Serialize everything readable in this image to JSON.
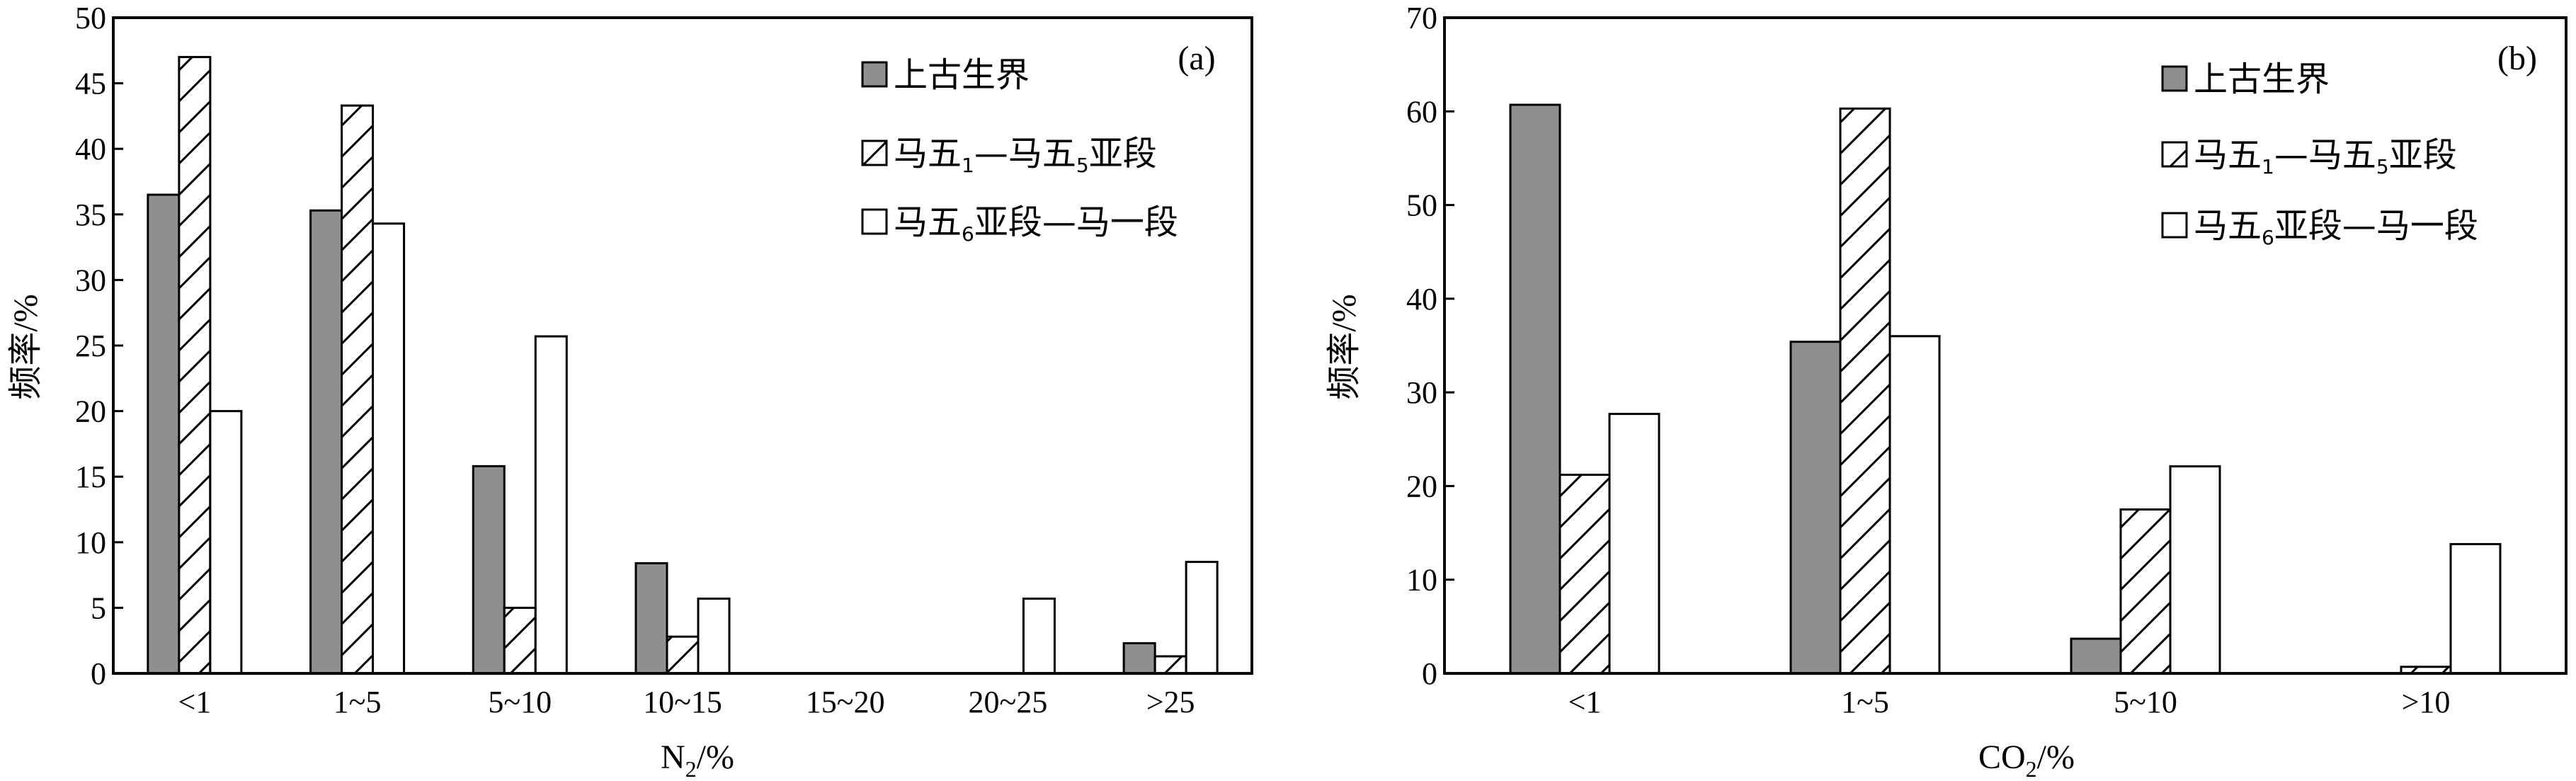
{
  "chart_data": [
    {
      "type": "bar",
      "panel_label": "(a)",
      "xlabel_main": "N",
      "xlabel_sub": "2",
      "xlabel_rest": "/%",
      "ylabel": "频率/%",
      "ylim": [
        0,
        50
      ],
      "yticks": [
        0,
        5,
        10,
        15,
        20,
        25,
        30,
        35,
        40,
        45,
        50
      ],
      "categories": [
        "<1",
        "1~5",
        "5~10",
        "10~15",
        "15~20",
        "20~25",
        ">25"
      ],
      "legend_position": "top-right",
      "series": [
        {
          "name": "上古生界",
          "legend": {
            "pre": "上古生界",
            "sub": "",
            "post": ""
          },
          "fill": "gray",
          "values": [
            36.5,
            35.3,
            15.8,
            8.4,
            0,
            0,
            2.3
          ]
        },
        {
          "name": "马五1—马五5亚段",
          "legend": {
            "pre": "马五",
            "sub": "1",
            "post": "—马五",
            "sub2": "5",
            "post2": "亚段"
          },
          "fill": "hatch",
          "values": [
            47.0,
            43.3,
            5.0,
            2.8,
            0,
            0,
            1.3
          ]
        },
        {
          "name": "马五6亚段—马一段",
          "legend": {
            "pre": "马五",
            "sub": "6",
            "post": "亚段—马一段"
          },
          "fill": "white",
          "values": [
            20.0,
            34.3,
            25.7,
            5.7,
            0,
            5.7,
            8.5
          ]
        }
      ]
    },
    {
      "type": "bar",
      "panel_label": "(b)",
      "xlabel_main": "CO",
      "xlabel_sub": "2",
      "xlabel_rest": "/%",
      "ylabel": "频率/%",
      "ylim": [
        0,
        70
      ],
      "yticks": [
        0,
        10,
        20,
        30,
        40,
        50,
        60,
        70
      ],
      "categories": [
        "<1",
        "1~5",
        "5~10",
        ">10"
      ],
      "legend_position": "top-right",
      "series": [
        {
          "name": "上古生界",
          "legend": {
            "pre": "上古生界",
            "sub": "",
            "post": ""
          },
          "fill": "gray",
          "values": [
            60.7,
            35.4,
            3.7,
            0
          ]
        },
        {
          "name": "马五1—马五5亚段",
          "legend": {
            "pre": "马五",
            "sub": "1",
            "post": "—马五",
            "sub2": "5",
            "post2": "亚段"
          },
          "fill": "hatch",
          "values": [
            21.2,
            60.3,
            17.5,
            0.7
          ]
        },
        {
          "name": "马五6亚段—马一段",
          "legend": {
            "pre": "马五",
            "sub": "6",
            "post": "亚段—马一段"
          },
          "fill": "white",
          "values": [
            27.7,
            36.0,
            22.1,
            13.8
          ]
        }
      ]
    }
  ],
  "colors": {
    "gray": "#8f8f8f",
    "stroke": "#000000",
    "background": "#ffffff"
  }
}
